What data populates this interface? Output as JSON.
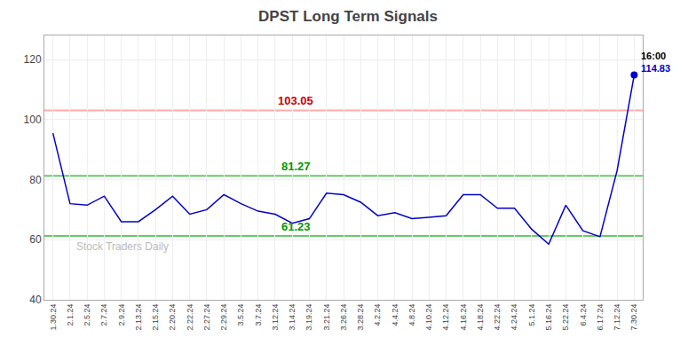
{
  "chart_data": {
    "type": "line",
    "title": "DPST Long Term Signals",
    "categories": [
      "1.30.24",
      "2.1.24",
      "2.5.24",
      "2.7.24",
      "2.9.24",
      "2.13.24",
      "2.15.24",
      "2.20.24",
      "2.22.24",
      "2.27.24",
      "2.29.24",
      "3.5.24",
      "3.7.24",
      "3.12.24",
      "3.14.24",
      "3.19.24",
      "3.21.24",
      "3.26.24",
      "3.28.24",
      "4.2.24",
      "4.4.24",
      "4.8.24",
      "4.10.24",
      "4.12.24",
      "4.16.24",
      "4.18.24",
      "4.22.24",
      "4.24.24",
      "5.1.24",
      "5.16.24",
      "5.22.24",
      "6.4.24",
      "6.17.24",
      "7.12.24",
      "7.30.24"
    ],
    "values": [
      95.5,
      72.0,
      71.5,
      74.5,
      66.0,
      66.0,
      70.0,
      74.5,
      68.5,
      70.0,
      75.0,
      72.0,
      69.5,
      68.5,
      65.5,
      67.0,
      75.5,
      75.0,
      72.5,
      68.0,
      69.0,
      67.0,
      67.5,
      68.0,
      75.0,
      75.0,
      70.5,
      70.5,
      63.5,
      58.5,
      71.5,
      63.0,
      61.0,
      83.0,
      114.83
    ],
    "color": "#0000cc",
    "marker": "circle",
    "hlines": [
      {
        "value": 103.05,
        "label": "103.05",
        "color": "#ffaaaa",
        "label_color": "#cc0000"
      },
      {
        "value": 81.27,
        "label": "81.27",
        "color": "#66cc66",
        "label_color": "#009900"
      },
      {
        "value": 61.23,
        "label": "61.23",
        "color": "#66cc66",
        "label_color": "#009900"
      }
    ],
    "annotations": [
      {
        "text": "16:00",
        "color": "#000000"
      },
      {
        "text": "114.83",
        "color": "#0000cc"
      },
      {
        "text": "Stock Traders Daily",
        "color": "#bbbbbb"
      }
    ],
    "ylim": [
      40,
      128
    ],
    "yticks": [
      40,
      60,
      80,
      100,
      120
    ],
    "grid": true
  }
}
